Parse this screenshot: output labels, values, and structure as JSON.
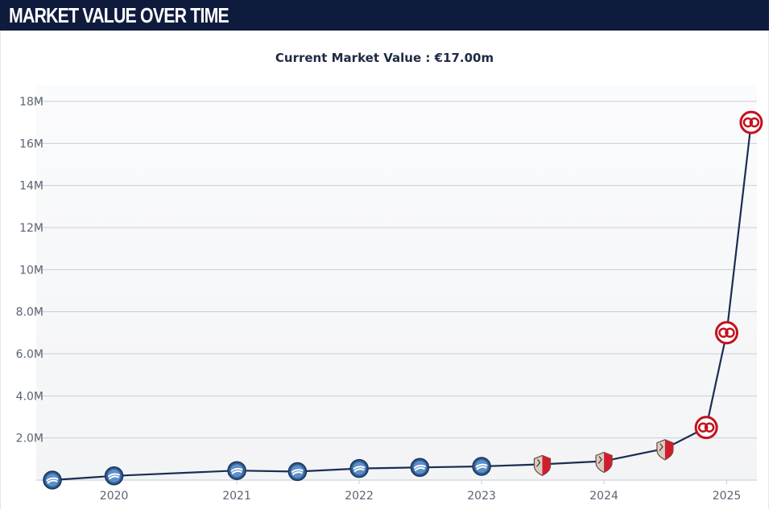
{
  "header": {
    "title": "MARKET VALUE OVER TIME"
  },
  "chart_data": {
    "type": "line",
    "title": "Current Market Value : €17.00m",
    "xlabel": "",
    "ylabel": "",
    "x_ticks": [
      "2020",
      "2021",
      "2022",
      "2023",
      "2024",
      "2025"
    ],
    "y_ticks": [
      "2.0M",
      "4.0M",
      "6.0M",
      "8.0M",
      "10M",
      "12M",
      "14M",
      "16M",
      "18M"
    ],
    "xlim": [
      "2019-07-01",
      "2025-04-01"
    ],
    "ylim": [
      0,
      18000000
    ],
    "grid": true,
    "line_color": "#1c2d52",
    "series": [
      {
        "points": [
          {
            "date": "2019-07-01",
            "value": 0,
            "club": "brighton"
          },
          {
            "date": "2020-01-01",
            "value": 200000,
            "club": "brighton"
          },
          {
            "date": "2021-01-01",
            "value": 450000,
            "club": "brighton"
          },
          {
            "date": "2021-07-01",
            "value": 400000,
            "club": "brighton"
          },
          {
            "date": "2022-01-01",
            "value": 550000,
            "club": "brighton"
          },
          {
            "date": "2022-07-01",
            "value": 600000,
            "club": "brighton"
          },
          {
            "date": "2023-01-01",
            "value": 650000,
            "club": "brighton"
          },
          {
            "date": "2023-07-01",
            "value": 750000,
            "club": "cardiff"
          },
          {
            "date": "2024-01-01",
            "value": 900000,
            "club": "cardiff"
          },
          {
            "date": "2024-07-01",
            "value": 1500000,
            "club": "cardiff"
          },
          {
            "date": "2024-11-01",
            "value": 2500000,
            "club": "mainz"
          },
          {
            "date": "2025-01-01",
            "value": 7000000,
            "club": "mainz"
          },
          {
            "date": "2025-03-15",
            "value": 17000000,
            "club": "mainz"
          }
        ]
      }
    ]
  }
}
